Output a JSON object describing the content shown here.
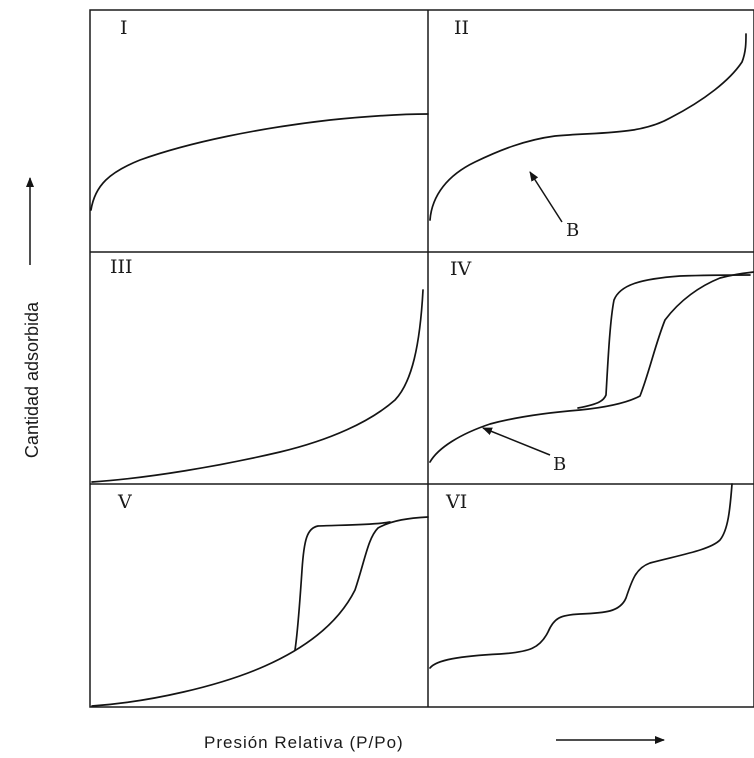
{
  "panels": [
    {
      "id": "I",
      "label": "I"
    },
    {
      "id": "II",
      "label": "II"
    },
    {
      "id": "III",
      "label": "III"
    },
    {
      "id": "IV",
      "label": "IV"
    },
    {
      "id": "V",
      "label": "V"
    },
    {
      "id": "VI",
      "label": "VI"
    }
  ],
  "annotations": {
    "point_b_label": "B"
  },
  "axes": {
    "x_label": "Presión Relativa (P/Po)",
    "y_label": "Cantidad adsorbida"
  },
  "colors": {
    "ink": "#141414",
    "background": "#ffffff"
  }
}
